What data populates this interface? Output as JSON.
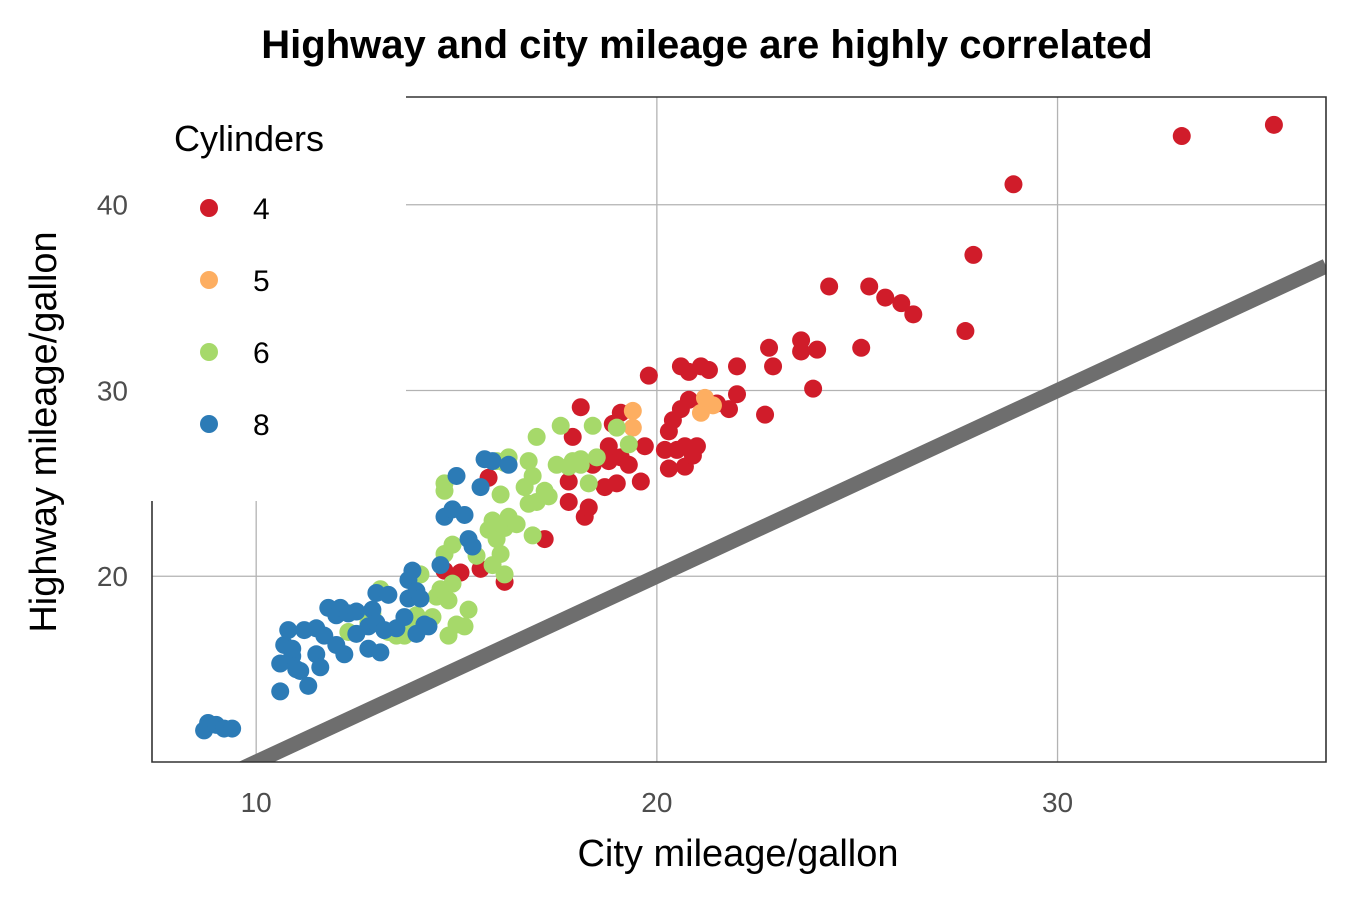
{
  "chart_data": {
    "type": "scatter",
    "title": "Highway and city mileage are highly correlated",
    "xlabel": "City mileage/gallon",
    "ylabel": "Highway mileage/gallon",
    "xlim": [
      7.4,
      36.7
    ],
    "ylim": [
      10.0,
      45.8
    ],
    "xticks": [
      10,
      20,
      30
    ],
    "yticks": [
      20,
      30,
      40
    ],
    "grid": true,
    "reference_line": {
      "slope": 1,
      "intercept": 0,
      "color": "#6e6e6e"
    },
    "legend": {
      "title": "Cylinders",
      "placement": "top-left",
      "entries": [
        {
          "label": "4",
          "color": "#d01c2a"
        },
        {
          "label": "5",
          "color": "#fdae61"
        },
        {
          "label": "6",
          "color": "#a6d96a"
        },
        {
          "label": "8",
          "color": "#2c7bb6"
        }
      ]
    },
    "series": [
      {
        "name": "4",
        "color": "#d01c2a",
        "points": [
          [
            14.7,
            20.3
          ],
          [
            15.1,
            20.2
          ],
          [
            15.6,
            20.4
          ],
          [
            16.2,
            19.7
          ],
          [
            15.8,
            25.3
          ],
          [
            17.2,
            22.0
          ],
          [
            17.8,
            24.0
          ],
          [
            17.8,
            25.1
          ],
          [
            17.9,
            27.5
          ],
          [
            18.1,
            29.1
          ],
          [
            18.2,
            23.2
          ],
          [
            18.3,
            23.7
          ],
          [
            18.4,
            26.0
          ],
          [
            18.7,
            24.8
          ],
          [
            18.8,
            26.2
          ],
          [
            18.8,
            27.0
          ],
          [
            18.9,
            28.2
          ],
          [
            19.0,
            25.0
          ],
          [
            19.1,
            26.4
          ],
          [
            19.1,
            28.8
          ],
          [
            19.3,
            26.0
          ],
          [
            19.6,
            25.1
          ],
          [
            19.7,
            27.0
          ],
          [
            19.8,
            30.8
          ],
          [
            20.2,
            26.8
          ],
          [
            20.3,
            25.8
          ],
          [
            20.3,
            27.8
          ],
          [
            20.4,
            28.4
          ],
          [
            20.5,
            26.8
          ],
          [
            20.6,
            29.0
          ],
          [
            20.7,
            27.0
          ],
          [
            20.6,
            31.3
          ],
          [
            20.7,
            25.9
          ],
          [
            20.8,
            29.5
          ],
          [
            20.8,
            31.0
          ],
          [
            20.9,
            26.5
          ],
          [
            21.0,
            27.0
          ],
          [
            21.1,
            31.3
          ],
          [
            21.2,
            29.2
          ],
          [
            21.3,
            31.1
          ],
          [
            21.5,
            29.3
          ],
          [
            21.8,
            29.0
          ],
          [
            22.0,
            29.8
          ],
          [
            22.0,
            31.3
          ],
          [
            22.7,
            28.7
          ],
          [
            22.8,
            32.3
          ],
          [
            22.9,
            31.3
          ],
          [
            23.6,
            32.1
          ],
          [
            23.6,
            32.7
          ],
          [
            23.9,
            30.1
          ],
          [
            24.0,
            32.2
          ],
          [
            24.3,
            35.6
          ],
          [
            25.1,
            32.3
          ],
          [
            25.3,
            35.6
          ],
          [
            25.7,
            35.0
          ],
          [
            26.1,
            34.7
          ],
          [
            26.4,
            34.1
          ],
          [
            27.7,
            33.2
          ],
          [
            27.9,
            37.3
          ],
          [
            28.9,
            41.1
          ],
          [
            33.1,
            43.7
          ],
          [
            35.4,
            44.3
          ]
        ]
      },
      {
        "name": "5",
        "color": "#fdae61",
        "points": [
          [
            19.4,
            28.9
          ],
          [
            19.4,
            28.0
          ],
          [
            21.1,
            28.8
          ],
          [
            21.4,
            29.2
          ],
          [
            21.2,
            29.6
          ]
        ]
      },
      {
        "name": "6",
        "color": "#a6d96a",
        "points": [
          [
            12.3,
            17.0
          ],
          [
            12.8,
            17.5
          ],
          [
            12.9,
            18.0
          ],
          [
            13.1,
            19.3
          ],
          [
            13.6,
            17.0
          ],
          [
            13.7,
            16.8
          ],
          [
            13.9,
            17.3
          ],
          [
            14.0,
            17.9
          ],
          [
            14.1,
            20.1
          ],
          [
            14.5,
            18.9
          ],
          [
            14.6,
            19.3
          ],
          [
            14.7,
            21.2
          ],
          [
            14.8,
            16.8
          ],
          [
            14.8,
            18.7
          ],
          [
            14.7,
            24.6
          ],
          [
            14.7,
            25.0
          ],
          [
            14.9,
            19.6
          ],
          [
            14.9,
            21.7
          ],
          [
            15.0,
            17.4
          ],
          [
            15.2,
            17.3
          ],
          [
            15.3,
            18.2
          ],
          [
            15.5,
            21.1
          ],
          [
            15.8,
            22.5
          ],
          [
            15.9,
            23.0
          ],
          [
            15.9,
            20.6
          ],
          [
            16.0,
            22.0
          ],
          [
            16.0,
            26.2
          ],
          [
            16.1,
            21.2
          ],
          [
            16.1,
            24.4
          ],
          [
            16.2,
            20.1
          ],
          [
            16.2,
            22.6
          ],
          [
            16.2,
            26.1
          ],
          [
            16.3,
            23.2
          ],
          [
            16.3,
            26.4
          ],
          [
            16.5,
            22.8
          ],
          [
            16.7,
            24.8
          ],
          [
            16.8,
            23.9
          ],
          [
            16.8,
            26.2
          ],
          [
            16.9,
            22.2
          ],
          [
            16.9,
            25.4
          ],
          [
            17.0,
            24.0
          ],
          [
            17.0,
            27.5
          ],
          [
            17.2,
            24.6
          ],
          [
            17.3,
            24.3
          ],
          [
            17.5,
            26.0
          ],
          [
            17.6,
            28.1
          ],
          [
            17.8,
            25.9
          ],
          [
            17.9,
            26.2
          ],
          [
            18.1,
            26.0
          ],
          [
            18.1,
            26.3
          ],
          [
            18.3,
            25.0
          ],
          [
            18.4,
            28.1
          ],
          [
            18.5,
            26.4
          ],
          [
            19.0,
            28.0
          ],
          [
            19.3,
            27.1
          ],
          [
            13.3,
            17.0
          ],
          [
            13.5,
            16.8
          ],
          [
            14.4,
            17.8
          ]
        ]
      },
      {
        "name": "8",
        "color": "#2c7bb6",
        "points": [
          [
            8.7,
            11.7
          ],
          [
            8.8,
            12.1
          ],
          [
            9.0,
            12.0
          ],
          [
            9.2,
            11.8
          ],
          [
            9.4,
            11.8
          ],
          [
            10.6,
            13.8
          ],
          [
            10.6,
            15.3
          ],
          [
            10.7,
            16.3
          ],
          [
            10.8,
            17.1
          ],
          [
            10.9,
            15.7
          ],
          [
            11.0,
            15.0
          ],
          [
            11.1,
            14.9
          ],
          [
            11.2,
            17.1
          ],
          [
            11.3,
            14.1
          ],
          [
            11.5,
            15.8
          ],
          [
            11.5,
            17.2
          ],
          [
            11.6,
            15.1
          ],
          [
            11.8,
            18.3
          ],
          [
            12.0,
            16.3
          ],
          [
            12.0,
            17.9
          ],
          [
            12.1,
            18.3
          ],
          [
            12.2,
            15.8
          ],
          [
            12.3,
            18.0
          ],
          [
            12.5,
            18.1
          ],
          [
            12.8,
            16.1
          ],
          [
            12.8,
            17.3
          ],
          [
            12.9,
            18.2
          ],
          [
            13.0,
            17.5
          ],
          [
            13.0,
            19.1
          ],
          [
            13.2,
            17.1
          ],
          [
            13.3,
            19.0
          ],
          [
            13.5,
            17.2
          ],
          [
            13.7,
            17.8
          ],
          [
            13.8,
            19.8
          ],
          [
            13.8,
            18.8
          ],
          [
            13.9,
            20.3
          ],
          [
            14.0,
            19.2
          ],
          [
            14.0,
            16.9
          ],
          [
            14.1,
            18.8
          ],
          [
            14.2,
            17.4
          ],
          [
            14.3,
            17.3
          ],
          [
            14.6,
            20.6
          ],
          [
            14.7,
            23.2
          ],
          [
            14.9,
            23.6
          ],
          [
            15.0,
            25.4
          ],
          [
            15.2,
            23.3
          ],
          [
            15.3,
            22.0
          ],
          [
            15.4,
            21.6
          ],
          [
            15.6,
            24.8
          ],
          [
            15.7,
            26.3
          ],
          [
            15.9,
            26.2
          ],
          [
            16.3,
            26.0
          ],
          [
            13.1,
            15.9
          ],
          [
            12.5,
            16.9
          ],
          [
            10.9,
            16.1
          ],
          [
            11.7,
            16.8
          ]
        ]
      }
    ]
  }
}
